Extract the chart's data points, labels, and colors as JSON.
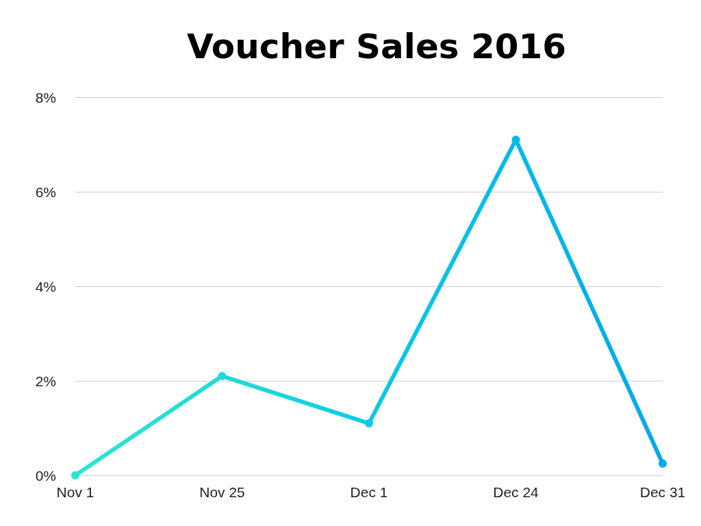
{
  "chart_data": {
    "type": "line",
    "title": "Voucher Sales 2016",
    "categories": [
      "Nov 1",
      "Nov 25",
      "Dec 1",
      "Dec 24",
      "Dec 31"
    ],
    "values": [
      0,
      2.1,
      1.1,
      7.1,
      0.25
    ],
    "colors": [
      "#2ee6d0",
      "#1fdbd8",
      "#0ccbe3",
      "#00bbea",
      "#05a8ea"
    ],
    "ylim": [
      0,
      8
    ],
    "yticks": [
      {
        "value": 0,
        "label": "0%"
      },
      {
        "value": 2,
        "label": "2%"
      },
      {
        "value": 4,
        "label": "4%"
      },
      {
        "value": 6,
        "label": "6%"
      },
      {
        "value": 8,
        "label": "8%"
      }
    ],
    "grid": "y",
    "marker": "circle",
    "line_style": "solid"
  }
}
